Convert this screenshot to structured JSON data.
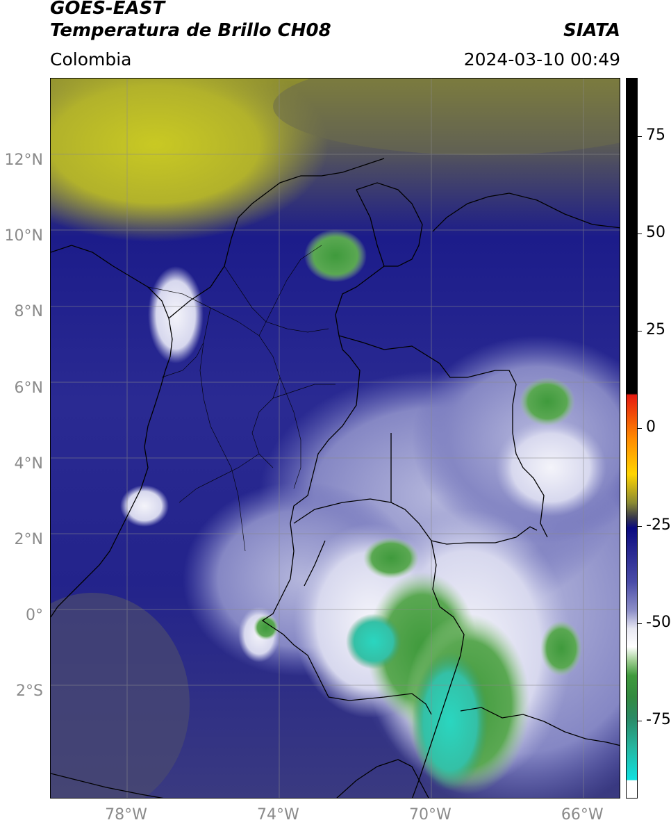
{
  "header": {
    "satellite": "GOES-EAST",
    "product": "Temperatura de Brillo CH08",
    "region": "Colombia",
    "agency": "SIATA",
    "timestamp": "2024-03-10 00:49"
  },
  "map": {
    "lon_range": [
      -80,
      -65
    ],
    "lat_range": [
      -5,
      14
    ],
    "lat_ticks": [
      {
        "value": 12,
        "label": "12°N"
      },
      {
        "value": 10,
        "label": "10°N"
      },
      {
        "value": 8,
        "label": "8°N"
      },
      {
        "value": 6,
        "label": "6°N"
      },
      {
        "value": 4,
        "label": "4°N"
      },
      {
        "value": 2,
        "label": "2°N"
      },
      {
        "value": 0,
        "label": "0°"
      },
      {
        "value": -2,
        "label": "2°S"
      }
    ],
    "lon_ticks": [
      {
        "value": -78,
        "label": "78°W"
      },
      {
        "value": -74,
        "label": "74°W"
      },
      {
        "value": -70,
        "label": "70°W"
      },
      {
        "value": -66,
        "label": "66°W"
      }
    ],
    "gridlines": true
  },
  "colorbar": {
    "range": [
      -95,
      90
    ],
    "ticks": [
      {
        "value": 75,
        "label": "75"
      },
      {
        "value": 50,
        "label": "50"
      },
      {
        "value": 25,
        "label": "25"
      },
      {
        "value": 0,
        "label": "0"
      },
      {
        "value": -25,
        "label": "-25"
      },
      {
        "value": -50,
        "label": "-50"
      },
      {
        "value": -75,
        "label": "-75"
      }
    ]
  }
}
